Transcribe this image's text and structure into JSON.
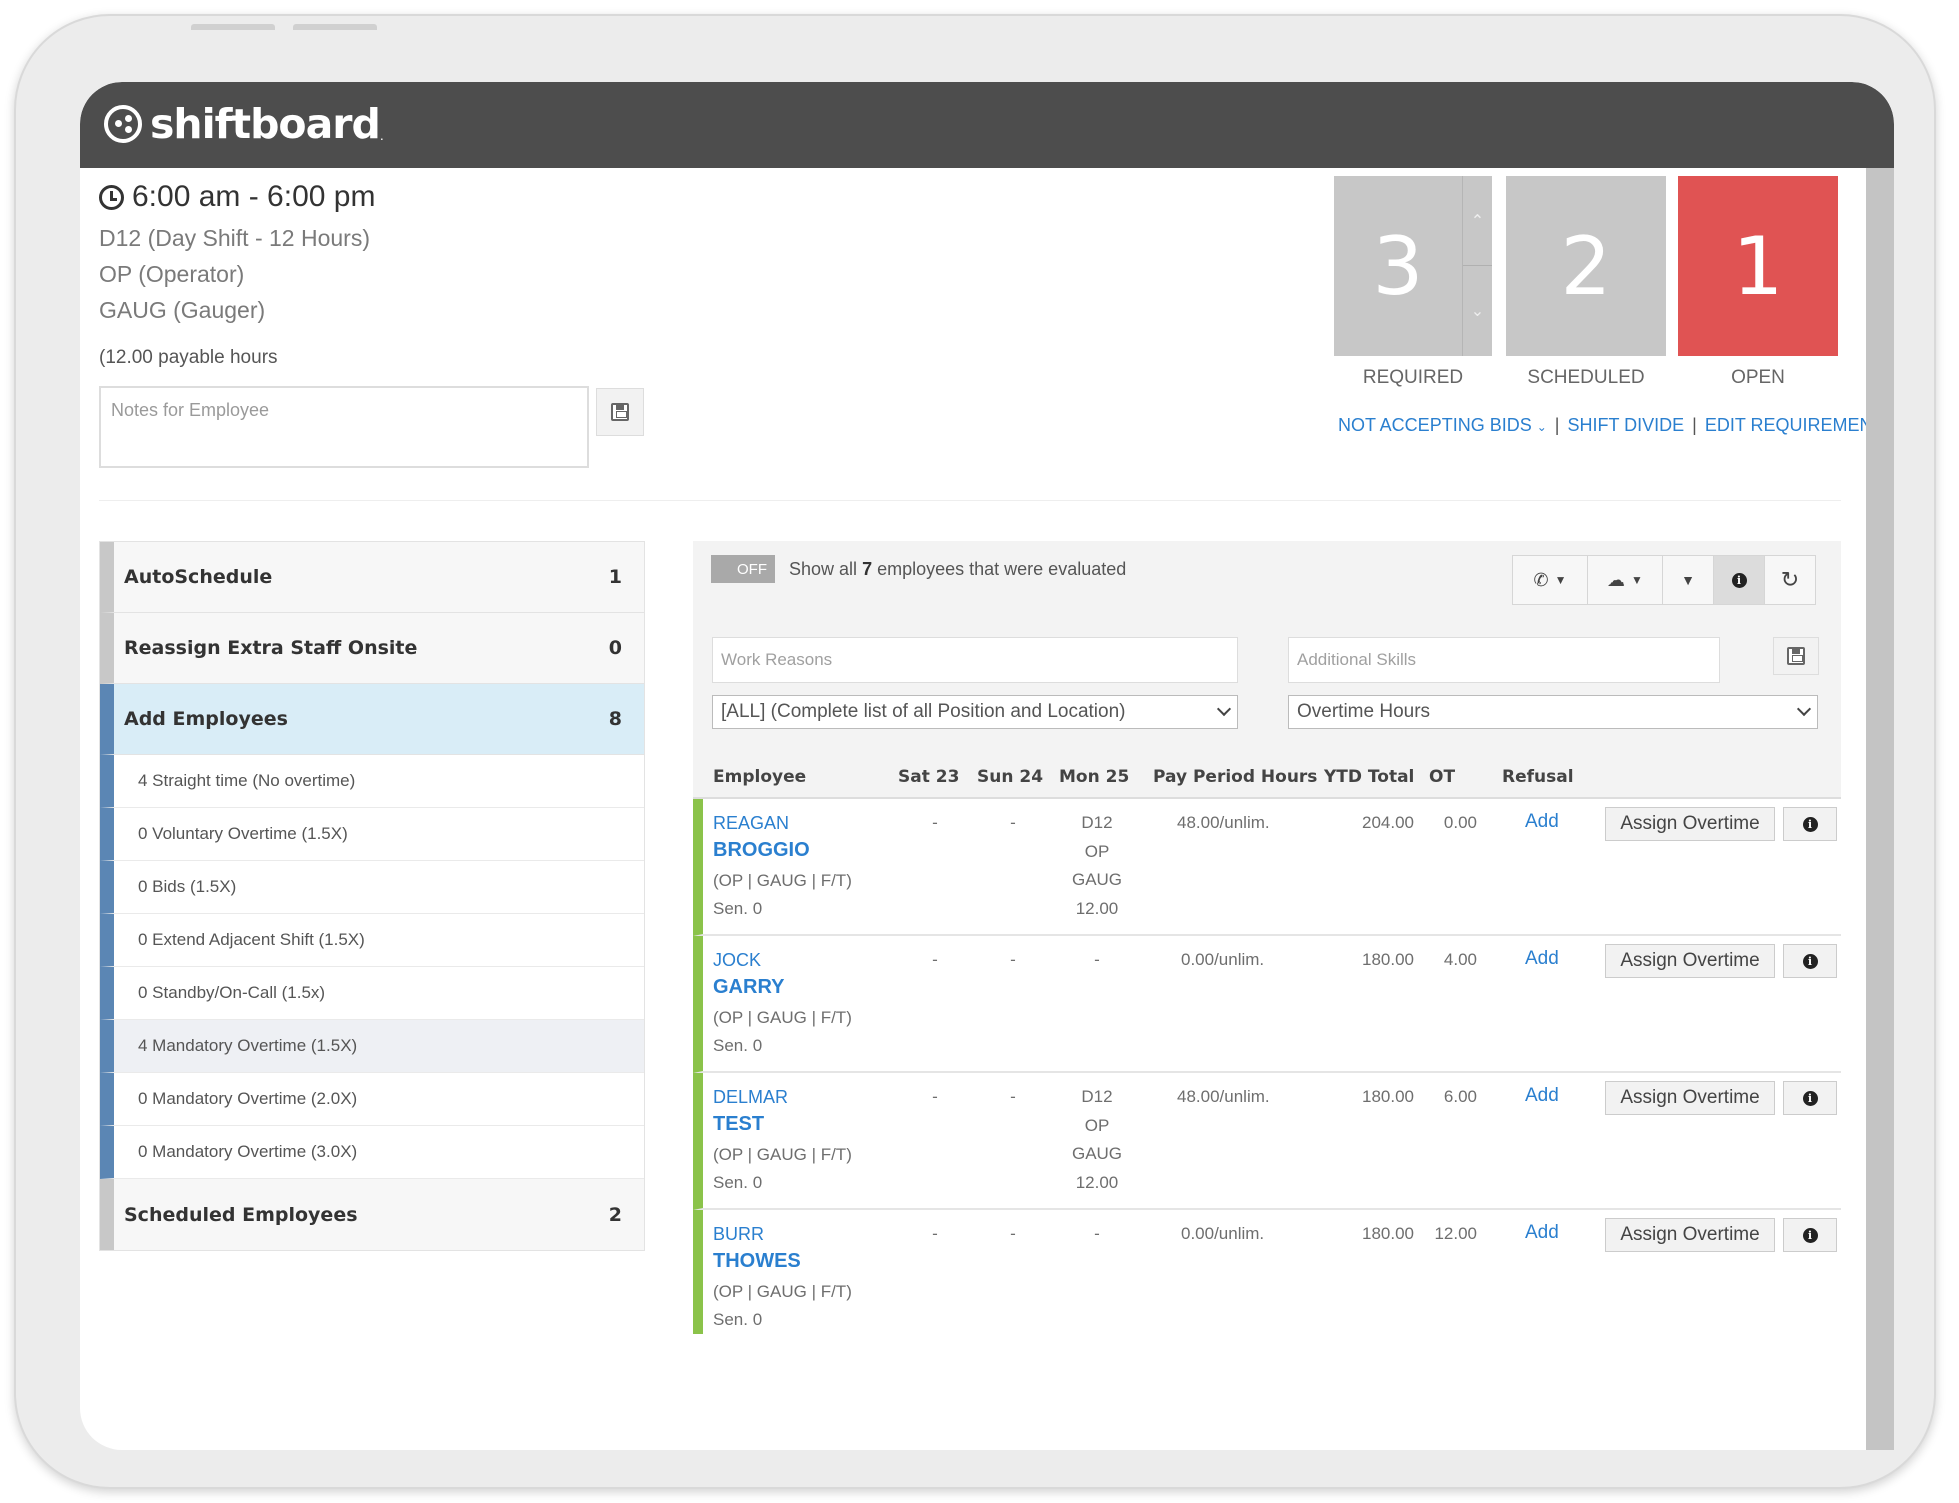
{
  "brand": {
    "logo_text": "shiftboard",
    "logo_dot": "."
  },
  "shift": {
    "time": "6:00 am - 6:00 pm",
    "code": "D12 (Day Shift - 12 Hours)",
    "position": "OP (Operator)",
    "skill": "GAUG (Gauger)",
    "payable": "(12.00 payable hours",
    "notes_placeholder": "Notes for Employee"
  },
  "stats": {
    "required": {
      "value": "3",
      "label": "REQUIRED"
    },
    "scheduled": {
      "value": "2",
      "label": "SCHEDULED"
    },
    "open": {
      "value": "1",
      "label": "OPEN"
    },
    "open_color": "#e05353"
  },
  "links": {
    "bids": "NOT ACCEPTING BIDS",
    "divide": "SHIFT DIVIDE",
    "edit": "EDIT REQUIREMENT",
    "separator": "|"
  },
  "left_panel": {
    "autoschedule": {
      "label": "AutoSchedule",
      "count": "1"
    },
    "reassign": {
      "label": "Reassign Extra Staff Onsite",
      "count": "0"
    },
    "add_employees": {
      "label": "Add Employees",
      "count": "8"
    },
    "sub_items": [
      "4 Straight time (No overtime)",
      "0 Voluntary Overtime (1.5X)",
      "0 Bids (1.5X)",
      "0 Extend Adjacent Shift (1.5X)",
      "0 Standby/On-Call (1.5x)",
      "4 Mandatory Overtime (1.5X)",
      "0 Mandatory Overtime (2.0X)",
      "0 Mandatory Overtime (3.0X)"
    ],
    "scheduled_employees": {
      "label": "Scheduled Employees",
      "count": "2"
    }
  },
  "filters": {
    "toggle_label": "OFF",
    "show_all_prefix": "Show all",
    "show_all_count": "7",
    "show_all_suffix": "employees that were evaluated",
    "work_reasons_placeholder": "Work Reasons",
    "additional_skills_placeholder": "Additional Skills",
    "position_select": "[ALL] (Complete list of all Position and Location)",
    "sort_select": "Overtime Hours"
  },
  "table": {
    "headers": {
      "employee": "Employee",
      "sat": "Sat 23",
      "sun": "Sun 24",
      "mon": "Mon 25",
      "pay_period": "Pay Period Hours",
      "ytd": "YTD Total",
      "ot": "OT",
      "refusal": "Refusal"
    },
    "rows": [
      {
        "first": "REAGAN",
        "last": "BROGGIO",
        "tags": "(OP | GAUG | F/T)",
        "sen": "Sen. 0",
        "sat": "-",
        "sun": "-",
        "mon": "D12\nOP\nGAUG\n12.00",
        "pay": "48.00/unlim.",
        "ytd": "204.00",
        "ot": "0.00",
        "refusal": "Add",
        "assign": "Assign Overtime"
      },
      {
        "first": "JOCK",
        "last": "GARRY",
        "tags": "(OP | GAUG | F/T)",
        "sen": "Sen. 0",
        "sat": "-",
        "sun": "-",
        "mon": "-",
        "pay": "0.00/unlim.",
        "ytd": "180.00",
        "ot": "4.00",
        "refusal": "Add",
        "assign": "Assign Overtime"
      },
      {
        "first": "DELMAR",
        "last": "TEST",
        "tags": "(OP | GAUG | F/T)",
        "sen": "Sen. 0",
        "sat": "-",
        "sun": "-",
        "mon": "D12\nOP\nGAUG\n12.00",
        "pay": "48.00/unlim.",
        "ytd": "180.00",
        "ot": "6.00",
        "refusal": "Add",
        "assign": "Assign Overtime"
      },
      {
        "first": "BURR",
        "last": "THOWES",
        "tags": "(OP | GAUG | F/T)",
        "sen": "Sen. 0",
        "sat": "-",
        "sun": "-",
        "mon": "-",
        "pay": "0.00/unlim.",
        "ytd": "180.00",
        "ot": "12.00",
        "refusal": "Add",
        "assign": "Assign Overtime"
      }
    ]
  }
}
